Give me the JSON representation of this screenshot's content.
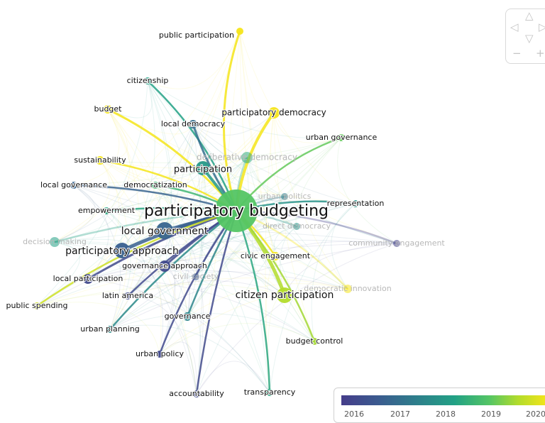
{
  "network": {
    "center": {
      "label": "participatory budgeting"
    },
    "nodes": [
      {
        "id": "pb",
        "label": "participatory budgeting",
        "year": 2018.9,
        "faint": false
      },
      {
        "id": "public_participation",
        "label": "public participation",
        "year": 2020.3,
        "faint": false
      },
      {
        "id": "citizenship",
        "label": "citizenship",
        "year": 2018.2,
        "faint": false
      },
      {
        "id": "budget",
        "label": "budget",
        "year": 2020.2,
        "faint": false
      },
      {
        "id": "local_democracy",
        "label": "local democracy",
        "year": 2017.1,
        "faint": false
      },
      {
        "id": "participatory_democracy",
        "label": "participatory democracy",
        "year": 2020.3,
        "faint": false
      },
      {
        "id": "urban_governance",
        "label": "urban governance",
        "year": 2019.0,
        "faint": false
      },
      {
        "id": "sustainability",
        "label": "sustainability",
        "year": 2020.2,
        "faint": false
      },
      {
        "id": "deliberative_democracy",
        "label": "deliberative democracy",
        "year": 2018.4,
        "faint": true
      },
      {
        "id": "participation",
        "label": "participation",
        "year": 2018.0,
        "faint": false
      },
      {
        "id": "local_governance",
        "label": "local governance",
        "year": 2016.9,
        "faint": false
      },
      {
        "id": "democratization",
        "label": "democratization",
        "year": 2018.6,
        "faint": false
      },
      {
        "id": "urban_politics",
        "label": "urban politics",
        "year": 2017.4,
        "faint": true
      },
      {
        "id": "empowerment",
        "label": "empowerment",
        "year": 2018.3,
        "faint": false
      },
      {
        "id": "representation",
        "label": "representation",
        "year": 2017.9,
        "faint": false
      },
      {
        "id": "local_government",
        "label": "local government",
        "year": 2016.9,
        "faint": false
      },
      {
        "id": "direct_democracy",
        "label": "direct democracy",
        "year": 2017.9,
        "faint": true
      },
      {
        "id": "decision_making",
        "label": "decision making",
        "year": 2018.2,
        "faint": true
      },
      {
        "id": "participatory_approach",
        "label": "participatory approach",
        "year": 2016.8,
        "faint": false
      },
      {
        "id": "community_engagement",
        "label": "community engagement",
        "year": 2016.1,
        "faint": true
      },
      {
        "id": "civic_engagement",
        "label": "civic engagement",
        "year": 2020.3,
        "faint": false
      },
      {
        "id": "governance_approach",
        "label": "governance approach",
        "year": 2016.3,
        "faint": false
      },
      {
        "id": "civil_society",
        "label": "civil society",
        "year": 2016.6,
        "faint": true
      },
      {
        "id": "local_participation",
        "label": "local participation",
        "year": 2016.3,
        "faint": false
      },
      {
        "id": "democratic_innovation",
        "label": "democratic innovation",
        "year": 2020.3,
        "faint": true
      },
      {
        "id": "latin_america",
        "label": "latin america",
        "year": 2016.3,
        "faint": false
      },
      {
        "id": "citizen_participation",
        "label": "citizen participation",
        "year": 2019.5,
        "faint": false
      },
      {
        "id": "public_spending",
        "label": "public spending",
        "year": 2019.8,
        "faint": false
      },
      {
        "id": "governance",
        "label": "governance",
        "year": 2017.6,
        "faint": false
      },
      {
        "id": "urban_planning",
        "label": "urban planning",
        "year": 2017.7,
        "faint": false
      },
      {
        "id": "budget_control",
        "label": "budget control",
        "year": 2019.4,
        "faint": false
      },
      {
        "id": "urban_policy",
        "label": "urban policy",
        "year": 2016.3,
        "faint": false
      },
      {
        "id": "accountability",
        "label": "accountability",
        "year": 2016.3,
        "faint": false
      },
      {
        "id": "transparency",
        "label": "transparency",
        "year": 2018.3,
        "faint": false
      }
    ]
  },
  "legend": {
    "ticks": [
      "2016",
      "2017",
      "2018",
      "2019",
      "2020"
    ],
    "colors": [
      "#453d8a",
      "#2f7c8c",
      "#22a185",
      "#54c564",
      "#f5e51a"
    ]
  },
  "navigator": {
    "icons": [
      "arrow-up-icon",
      "arrow-left-icon",
      "arrow-right-icon",
      "arrow-down-icon",
      "zoom-out-icon",
      "zoom-in-icon"
    ]
  }
}
